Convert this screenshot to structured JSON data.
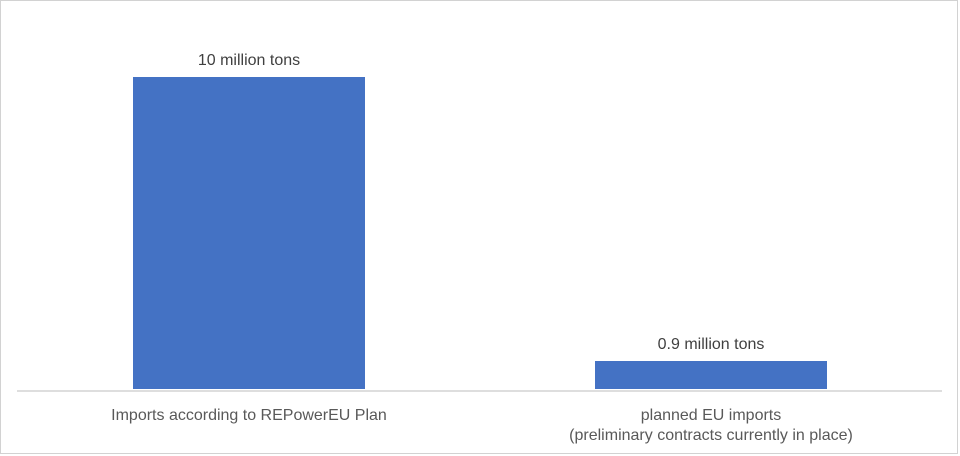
{
  "chart_data": {
    "type": "bar",
    "title": "",
    "categories": [
      "Imports according to REPowerEU Plan",
      "planned EU imports (preliminary contracts currently in place)"
    ],
    "category_lines": [
      [
        "Imports according to REPowerEU Plan",
        ""
      ],
      [
        "planned EU imports",
        "(preliminary contracts currently in place)"
      ]
    ],
    "values": [
      10,
      0.9
    ],
    "value_labels": [
      "10 million tons",
      "0.9 million tons"
    ],
    "unit": "million tons",
    "ylim": [
      0,
      10
    ],
    "grid": false,
    "legend_position": "none",
    "bar_color": "#4472C4",
    "axis_line_color": "#dedede",
    "value_label_color": "#404040",
    "category_label_color": "#595959"
  }
}
